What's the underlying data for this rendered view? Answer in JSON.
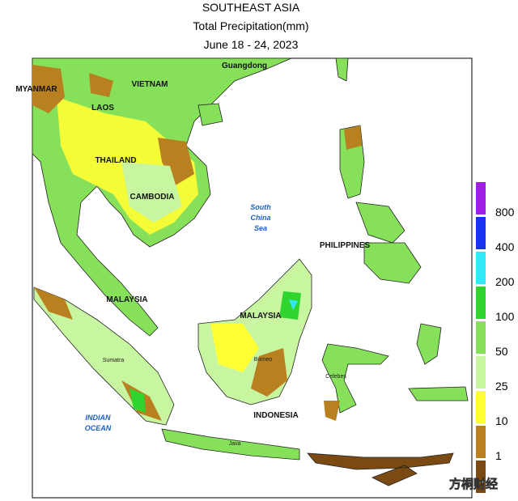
{
  "header": {
    "title": "SOUTHEAST ASIA",
    "subtitle": "Total Precipitation(mm)",
    "dates": "June 18 - 24, 2023"
  },
  "map_labels": [
    "Guangdong",
    "MYANMAR",
    "VIETNAM",
    "LAOS",
    "THAILAND",
    "CAMBODIA",
    "PHILIPPINES",
    "MALAYSIA",
    "MALAYSIA",
    "INDONESIA",
    "Sumatra",
    "Borneo",
    "Celebes",
    "Java"
  ],
  "sea_labels": [
    [
      "South",
      "China",
      "Sea"
    ],
    [
      "INDIAN",
      "OCEAN"
    ]
  ],
  "legend": {
    "colors": [
      "#7a4a12",
      "#b8801e",
      "#ffff33",
      "#c8f5a0",
      "#86e05a",
      "#2fd42f",
      "#33e8f5",
      "#1a33f0",
      "#a020e8"
    ],
    "labels": [
      "1",
      "10",
      "25",
      "50",
      "100",
      "200",
      "400",
      "800"
    ]
  },
  "watermark": "方桐财经"
}
